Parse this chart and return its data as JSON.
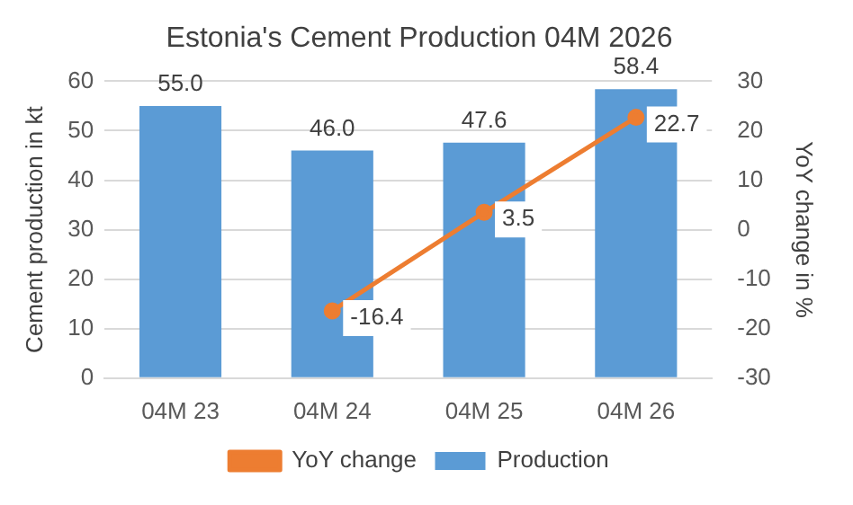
{
  "chart_data": {
    "type": "bar",
    "title": "Estonia's Cement Production 04M 2026",
    "categories": [
      "04M 23",
      "04M 24",
      "04M 25",
      "04M 26"
    ],
    "series": [
      {
        "name": "Production",
        "color": "#5b9bd5",
        "values": [
          55.0,
          46.0,
          47.6,
          58.4
        ],
        "value_labels": [
          "55.0",
          "46.0",
          "47.6",
          "58.4"
        ]
      },
      {
        "name": "YoY change",
        "type": "line",
        "axis": "y2",
        "color": "#ed7d31",
        "values": [
          null,
          -16.4,
          3.5,
          22.7
        ],
        "value_labels": [
          null,
          "-16.4",
          "3.5",
          "22.7"
        ]
      }
    ],
    "ylabel": "Cement production in kt",
    "y2label": "YoY change in %",
    "ylim": [
      0,
      60
    ],
    "yticks": [
      0,
      10,
      20,
      30,
      40,
      50,
      60
    ],
    "y2lim": [
      -30,
      30
    ],
    "y2ticks": [
      -30,
      -20,
      -10,
      0,
      10,
      20,
      30
    ],
    "grid": "y",
    "legend": "bottom",
    "marker": "circle"
  }
}
